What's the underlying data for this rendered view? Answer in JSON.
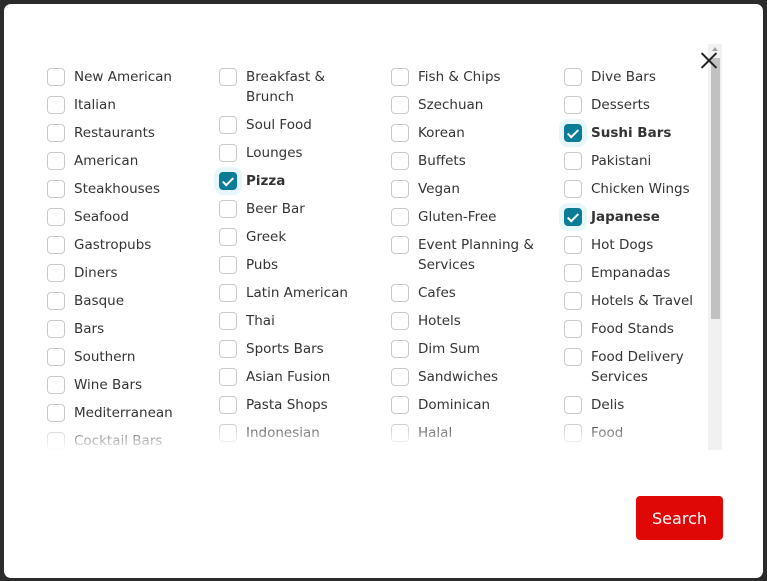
{
  "accent_color": "#0a7c97",
  "button_color": "#e00707",
  "columns": [
    [
      {
        "label": "New American",
        "checked": false
      },
      {
        "label": "Italian",
        "checked": false
      },
      {
        "label": "Restaurants",
        "checked": false
      },
      {
        "label": "American",
        "checked": false
      },
      {
        "label": "Steakhouses",
        "checked": false
      },
      {
        "label": "Seafood",
        "checked": false
      },
      {
        "label": "Gastropubs",
        "checked": false
      },
      {
        "label": "Diners",
        "checked": false
      },
      {
        "label": "Basque",
        "checked": false
      },
      {
        "label": "Bars",
        "checked": false
      },
      {
        "label": "Southern",
        "checked": false
      },
      {
        "label": "Wine Bars",
        "checked": false
      },
      {
        "label": "Mediterranean",
        "checked": false
      },
      {
        "label": "Cocktail Bars",
        "checked": false
      }
    ],
    [
      {
        "label": "Breakfast & Brunch",
        "checked": false
      },
      {
        "label": "Soul Food",
        "checked": false
      },
      {
        "label": "Lounges",
        "checked": false
      },
      {
        "label": "Pizza",
        "checked": true
      },
      {
        "label": "Beer Bar",
        "checked": false
      },
      {
        "label": "Greek",
        "checked": false
      },
      {
        "label": "Pubs",
        "checked": false
      },
      {
        "label": "Latin American",
        "checked": false
      },
      {
        "label": "Thai",
        "checked": false
      },
      {
        "label": "Sports Bars",
        "checked": false
      },
      {
        "label": "Asian Fusion",
        "checked": false
      },
      {
        "label": "Pasta Shops",
        "checked": false
      },
      {
        "label": "Indonesian",
        "checked": false
      }
    ],
    [
      {
        "label": "Fish & Chips",
        "checked": false
      },
      {
        "label": "Szechuan",
        "checked": false
      },
      {
        "label": "Korean",
        "checked": false
      },
      {
        "label": "Buffets",
        "checked": false
      },
      {
        "label": "Vegan",
        "checked": false
      },
      {
        "label": "Gluten-Free",
        "checked": false
      },
      {
        "label": "Event Planning & Services",
        "checked": false
      },
      {
        "label": "Cafes",
        "checked": false
      },
      {
        "label": "Hotels",
        "checked": false
      },
      {
        "label": "Dim Sum",
        "checked": false
      },
      {
        "label": "Sandwiches",
        "checked": false
      },
      {
        "label": "Dominican",
        "checked": false
      },
      {
        "label": "Halal",
        "checked": false
      }
    ],
    [
      {
        "label": "Dive Bars",
        "checked": false
      },
      {
        "label": "Desserts",
        "checked": false
      },
      {
        "label": "Sushi Bars",
        "checked": true
      },
      {
        "label": "Pakistani",
        "checked": false
      },
      {
        "label": "Chicken Wings",
        "checked": false
      },
      {
        "label": "Japanese",
        "checked": true
      },
      {
        "label": "Hot Dogs",
        "checked": false
      },
      {
        "label": "Empanadas",
        "checked": false
      },
      {
        "label": "Hotels & Travel",
        "checked": false
      },
      {
        "label": "Food Stands",
        "checked": false
      },
      {
        "label": "Food Delivery Services",
        "checked": false
      },
      {
        "label": "Delis",
        "checked": false
      },
      {
        "label": "Food",
        "checked": false
      }
    ]
  ],
  "search_label": "Search"
}
